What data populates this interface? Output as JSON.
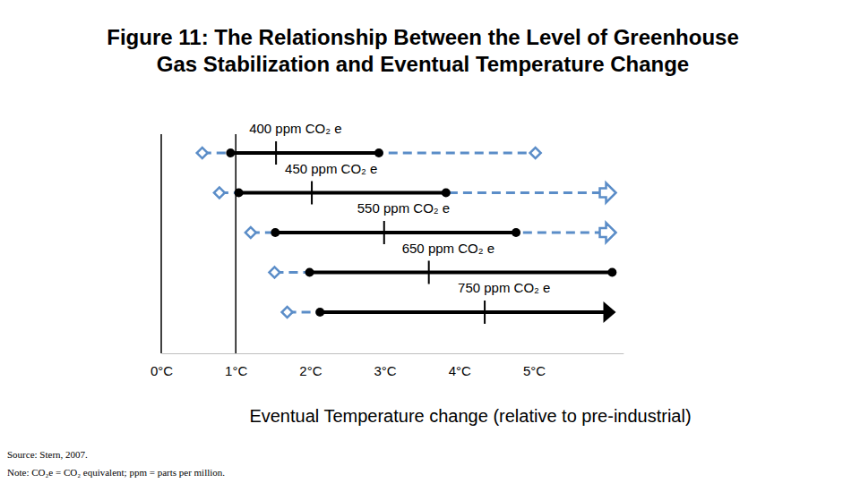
{
  "chart_data": {
    "type": "range",
    "orientation": "horizontal",
    "title": "Figure 11: The Relationship Between the Level of Greenhouse Gas Stabilization and Eventual Temperature Change",
    "title_lines": [
      "Figure 11: The Relationship Between the Level of Greenhouse",
      "Gas Stabilization and Eventual Temperature Change"
    ],
    "x_label": "Eventual Temperature change (relative to pre-industrial)",
    "source": "Source: Stern, 2007.",
    "note": "Note: CO₂e = CO₂ equivalent; ppm = parts per million.",
    "categories": [
      "400 ppm CO₂ e",
      "450 ppm CO₂ e",
      "550 ppm CO₂ e",
      "650 ppm CO₂ e",
      "750 ppm CO₂ e"
    ],
    "series": [
      {
        "type": "range",
        "color": "#5b8dc8",
        "line_style": "dashed",
        "marker": "diamond",
        "low": [
          0.55,
          0.78,
          1.2,
          1.52,
          1.69
        ],
        "high": [
          5.02,
          6.1,
          6.1,
          1.99,
          2.13
        ],
        "end_marker": [
          "diamond",
          "arrow",
          "arrow",
          null,
          null
        ]
      },
      {
        "type": "range",
        "color": "#000000",
        "line_style": "solid",
        "marker": "dot",
        "low": [
          0.93,
          1.04,
          1.53,
          1.99,
          2.13
        ],
        "high": [
          2.92,
          3.82,
          4.76,
          6.05,
          6.1
        ],
        "end_marker": [
          "dot",
          "dot",
          "dot",
          "dot",
          "arrow"
        ]
      },
      {
        "type": "tick",
        "color": "#000000",
        "values": [
          1.54,
          2.02,
          2.99,
          3.59,
          4.34
        ]
      }
    ],
    "vlines": [
      0,
      1
    ],
    "xlim": [
      0,
      6.2
    ],
    "xticks": [
      {
        "value": 0,
        "label": "0°C"
      },
      {
        "value": 1,
        "label": "1°C"
      },
      {
        "value": 2,
        "label": "2°C"
      },
      {
        "value": 3,
        "label": "3°C"
      },
      {
        "value": 4,
        "label": "4°C"
      },
      {
        "value": 5,
        "label": "5°C"
      }
    ],
    "grid": false
  }
}
